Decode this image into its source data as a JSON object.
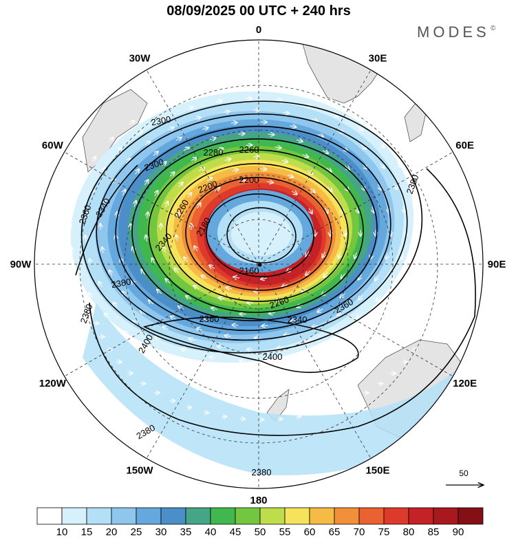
{
  "header": {
    "title": "08/09/2025  00 UTC  + 240 hrs",
    "brand": "MODES",
    "brand_mark": "©"
  },
  "map": {
    "projection": "south-polar-stereographic",
    "longitude_labels": [
      {
        "text": "0",
        "lon": 0
      },
      {
        "text": "30E",
        "lon": 30
      },
      {
        "text": "60E",
        "lon": 60
      },
      {
        "text": "90E",
        "lon": 90
      },
      {
        "text": "120E",
        "lon": 120
      },
      {
        "text": "150E",
        "lon": 150
      },
      {
        "text": "180",
        "lon": 180
      },
      {
        "text": "150W",
        "lon": -150
      },
      {
        "text": "120W",
        "lon": -120
      },
      {
        "text": "90W",
        "lon": -90
      },
      {
        "text": "60W",
        "lon": -60
      },
      {
        "text": "30W",
        "lon": -30
      }
    ],
    "contour_labels": [
      "2300",
      "2280",
      "2260",
      "2200",
      "2300",
      "2260",
      "2200",
      "2180",
      "2160",
      "2360",
      "2340",
      "2340",
      "2380",
      "2360",
      "2380",
      "2400",
      "2400",
      "2340",
      "2360",
      "2380",
      "2380",
      "2380",
      "2260"
    ],
    "vector_reference": {
      "label": "50"
    }
  },
  "colorbar": {
    "labels": [
      "10",
      "15",
      "20",
      "25",
      "30",
      "35",
      "40",
      "45",
      "50",
      "55",
      "60",
      "65",
      "70",
      "75",
      "80",
      "85",
      "90"
    ],
    "colors": [
      "#ffffff",
      "#d6f1fb",
      "#b4e0f7",
      "#8ec6ee",
      "#64a8dd",
      "#4b8ec8",
      "#45a586",
      "#41b84e",
      "#72c640",
      "#bfdc4a",
      "#f5e35c",
      "#f6bb45",
      "#f28f3a",
      "#ea6232",
      "#dd3a2b",
      "#c52228",
      "#a8181f",
      "#841016"
    ]
  }
}
